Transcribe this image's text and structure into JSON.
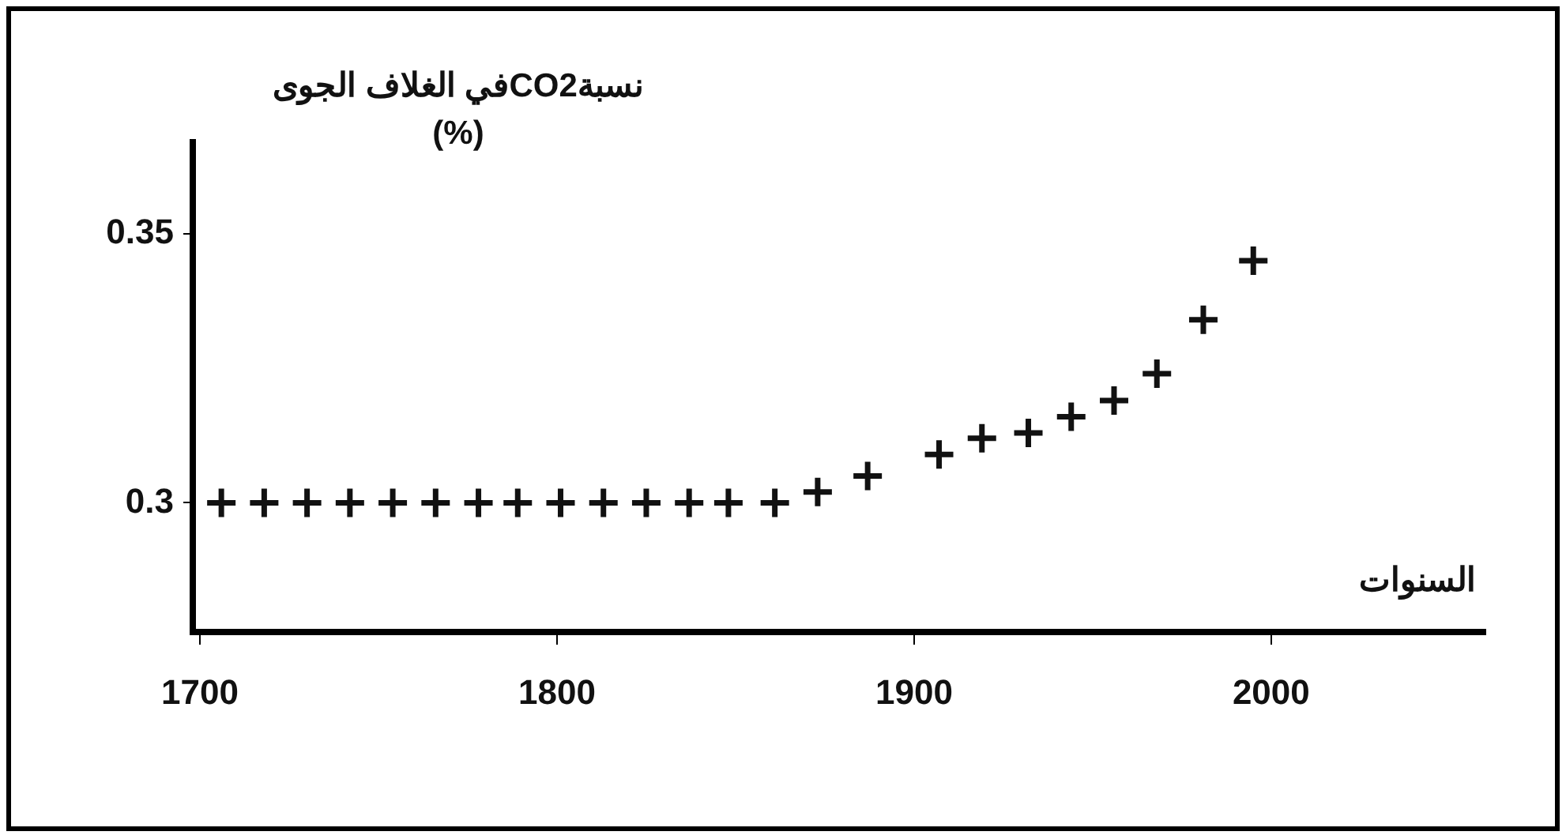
{
  "chart_data": {
    "type": "scatter",
    "xlabel": "السنوات",
    "ylabel": "نسبةCO2في الغلاف الجوى\n(%)",
    "x": [
      1706,
      1718,
      1730,
      1742,
      1754,
      1766,
      1778,
      1789,
      1801,
      1813,
      1825,
      1837,
      1848,
      1861,
      1873,
      1887,
      1907,
      1919,
      1932,
      1944,
      1956,
      1968,
      1981,
      1995
    ],
    "values": [
      0.3,
      0.3,
      0.3,
      0.3,
      0.3,
      0.3,
      0.3,
      0.3,
      0.3,
      0.3,
      0.3,
      0.3,
      0.3,
      0.3,
      0.302,
      0.305,
      0.309,
      0.312,
      0.313,
      0.316,
      0.319,
      0.324,
      0.334,
      0.345
    ],
    "color": "#111111",
    "marker": "cross",
    "grid": false,
    "legend": false,
    "xlim": [
      1698,
      2060
    ],
    "xticks": [
      1700,
      1800,
      1900,
      2000
    ],
    "ylim": [
      0.276,
      0.367
    ],
    "yticks": [
      0.3,
      0.35
    ]
  }
}
